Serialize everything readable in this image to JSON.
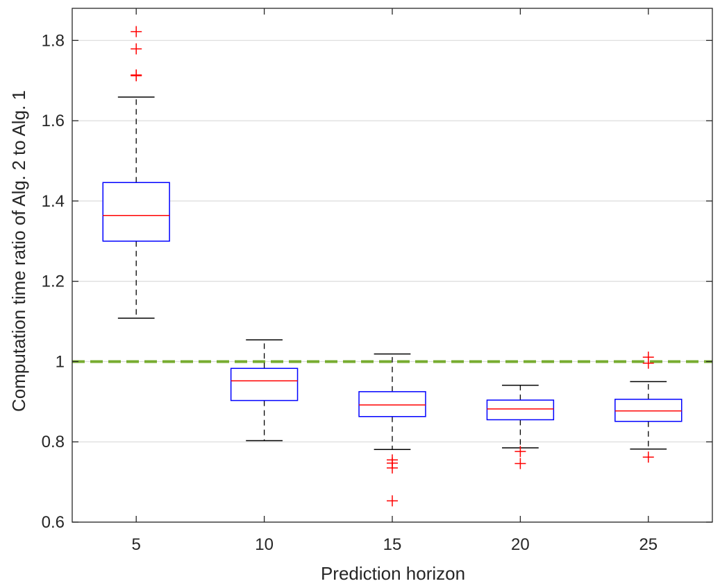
{
  "chart_data": {
    "type": "box",
    "title": "",
    "xlabel": "Prediction horizon",
    "ylabel": "Computation time ratio of Alg. 2 to Alg. 1",
    "ylim": [
      0.6,
      1.88
    ],
    "yticks": [
      0.6,
      0.8,
      1.0,
      1.2,
      1.4,
      1.6,
      1.8
    ],
    "ytick_labels": [
      "0.6",
      "0.8",
      "1",
      "1.2",
      "1.4",
      "1.6",
      "1.8"
    ],
    "grid": "horizontal",
    "categories": [
      "5",
      "10",
      "15",
      "20",
      "25"
    ],
    "boxes": [
      {
        "category": "5",
        "whisker_low": 1.108,
        "q1": 1.3,
        "median": 1.364,
        "q3": 1.446,
        "whisker_high": 1.659,
        "outliers": [
          1.822,
          1.779,
          1.714,
          1.712
        ]
      },
      {
        "category": "10",
        "whisker_low": 0.803,
        "q1": 0.903,
        "median": 0.952,
        "q3": 0.983,
        "whisker_high": 1.054,
        "outliers": []
      },
      {
        "category": "15",
        "whisker_low": 0.781,
        "q1": 0.863,
        "median": 0.892,
        "q3": 0.925,
        "whisker_high": 1.019,
        "outliers": [
          0.755,
          0.747,
          0.735,
          0.653
        ]
      },
      {
        "category": "20",
        "whisker_low": 0.785,
        "q1": 0.855,
        "median": 0.882,
        "q3": 0.904,
        "whisker_high": 0.941,
        "outliers": [
          0.776,
          0.746
        ]
      },
      {
        "category": "25",
        "whisker_low": 0.782,
        "q1": 0.851,
        "median": 0.877,
        "q3": 0.906,
        "whisker_high": 0.95,
        "outliers": [
          1.011,
          0.996,
          0.762
        ]
      }
    ],
    "reference_line": {
      "y": 1.0,
      "style": "dashed"
    },
    "colors": {
      "box": "#0000ff",
      "median": "#ff0000",
      "outlier": "#ff0000",
      "whisker": "#000000",
      "reference_line": "#77ac30",
      "grid": "#dcdcdc",
      "axis": "#262626"
    }
  }
}
